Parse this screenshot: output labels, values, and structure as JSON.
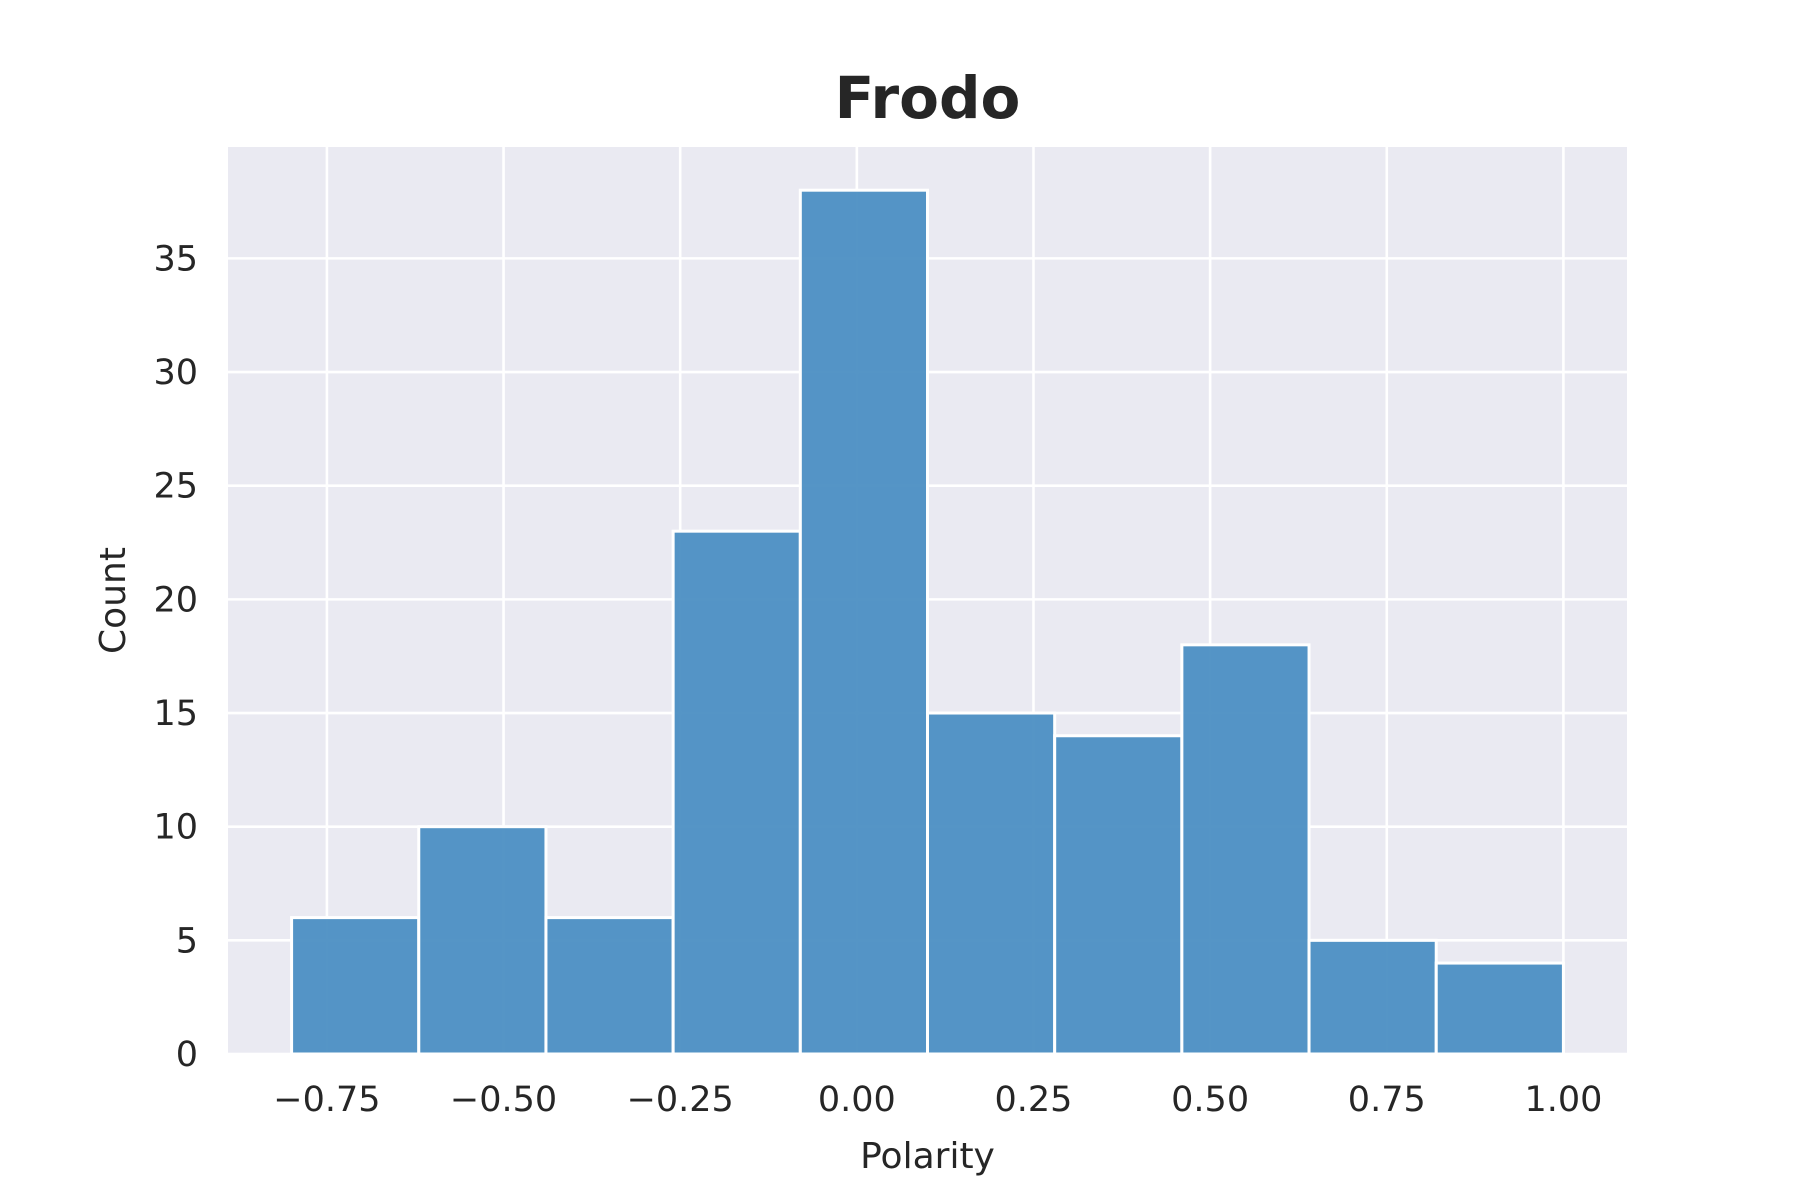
{
  "chart_data": {
    "type": "bar",
    "title": "Frodo",
    "xlabel": "Polarity",
    "ylabel": "Count",
    "bins": [
      {
        "x0": -0.8,
        "x1": -0.62,
        "count": 6
      },
      {
        "x0": -0.62,
        "x1": -0.44,
        "count": 10
      },
      {
        "x0": -0.44,
        "x1": -0.26,
        "count": 6
      },
      {
        "x0": -0.26,
        "x1": -0.08,
        "count": 23
      },
      {
        "x0": -0.08,
        "x1": 0.1,
        "count": 38
      },
      {
        "x0": 0.1,
        "x1": 0.28,
        "count": 15
      },
      {
        "x0": 0.28,
        "x1": 0.46,
        "count": 14
      },
      {
        "x0": 0.46,
        "x1": 0.64,
        "count": 18
      },
      {
        "x0": 0.64,
        "x1": 0.82,
        "count": 5
      },
      {
        "x0": 0.82,
        "x1": 1.0,
        "count": 4
      }
    ],
    "xlim": [
      -0.89,
      1.09
    ],
    "ylim": [
      0,
      39.9
    ],
    "xticks": [
      -0.75,
      -0.5,
      -0.25,
      0.0,
      0.25,
      0.5,
      0.75,
      1.0
    ],
    "xtick_labels": [
      "−0.75",
      "−0.50",
      "−0.25",
      "0.00",
      "0.25",
      "0.50",
      "0.75",
      "1.00"
    ],
    "yticks": [
      0,
      5,
      10,
      15,
      20,
      25,
      30,
      35
    ],
    "ytick_labels": [
      "0",
      "5",
      "10",
      "15",
      "20",
      "25",
      "30",
      "35"
    ],
    "grid": true,
    "colors": {
      "bar": "#4c8fc3",
      "plot_background": "#eaeaf2",
      "grid": "#ffffff",
      "text": "#262626"
    }
  }
}
